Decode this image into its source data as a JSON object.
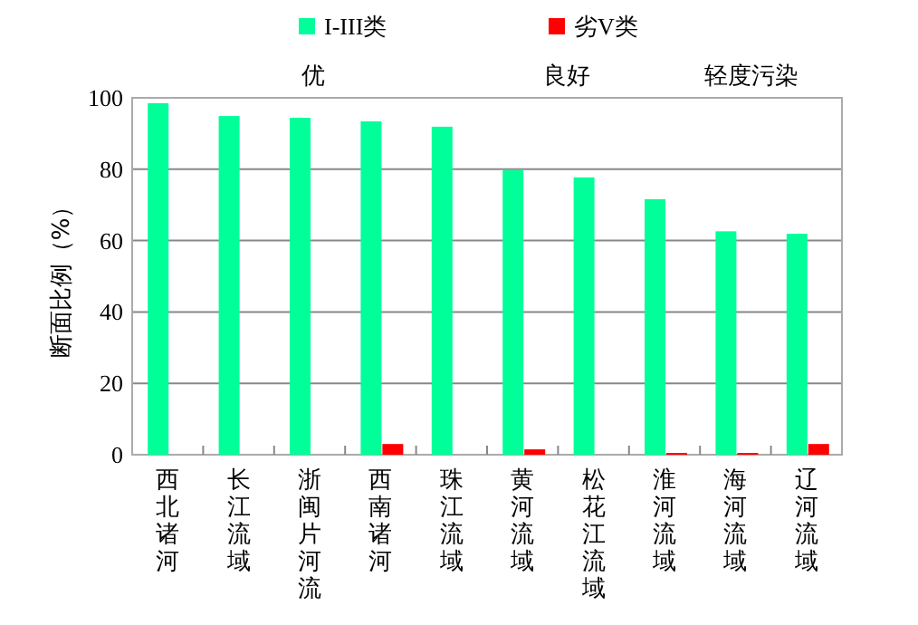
{
  "chart_data": {
    "type": "bar",
    "categories": [
      "西北诸河",
      "长江流域",
      "浙闽片河流",
      "西南诸河",
      "珠江流域",
      "黄河流域",
      "松花江流域",
      "淮河流域",
      "海河流域",
      "辽河流域"
    ],
    "series": [
      {
        "name": "I-III类",
        "color": "#00ff99",
        "values": [
          98.5,
          94.9,
          94.4,
          93.4,
          91.9,
          79.7,
          77.7,
          71.6,
          62.6,
          61.9
        ]
      },
      {
        "name": "劣V类",
        "color": "#ff0000",
        "values": [
          0,
          0,
          0,
          3.0,
          0,
          1.5,
          0,
          0.5,
          0.5,
          3.0
        ]
      }
    ],
    "ylabel": "断面比例（%）",
    "ylim": [
      0,
      100
    ],
    "yticks": [
      0,
      20,
      40,
      60,
      80,
      100
    ],
    "grid": "y",
    "legend": "top",
    "annotations": [
      "优",
      "良好",
      "轻度污染"
    ]
  }
}
